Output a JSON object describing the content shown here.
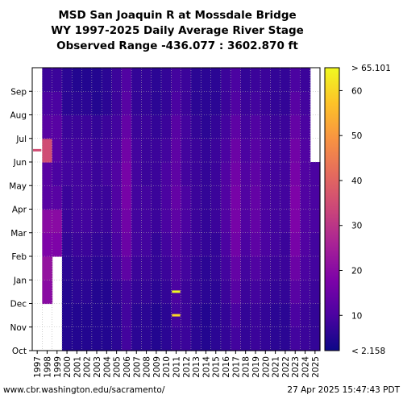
{
  "title_lines": [
    "MSD San Joaquin R at Mossdale Bridge",
    "WY 1997-2025 Daily Average River Stage",
    "Observed Range -436.077 : 3602.870 ft"
  ],
  "footer": {
    "left": "www.cbr.washington.edu/sacramento/",
    "right": "27 Apr 2025 15:47:43 PDT"
  },
  "colors": {
    "scale": [
      "#0d0887",
      "#4b03a1",
      "#7d03a8",
      "#a82296",
      "#cb4679",
      "#e56b5d",
      "#f89441",
      "#fdc328",
      "#f0f921"
    ],
    "background": "#ffffff",
    "grid": "#b0b0b0"
  },
  "chart_data": {
    "type": "heatmap",
    "x_categories": [
      "1997",
      "1998",
      "1999",
      "2000",
      "2001",
      "2002",
      "2003",
      "2004",
      "2005",
      "2006",
      "2007",
      "2008",
      "2009",
      "2010",
      "2011",
      "2012",
      "2013",
      "2014",
      "2015",
      "2016",
      "2017",
      "2018",
      "2019",
      "2020",
      "2021",
      "2022",
      "2023",
      "2024",
      "2025"
    ],
    "y_categories": [
      "Oct",
      "Nov",
      "Dec",
      "Jan",
      "Feb",
      "Mar",
      "Apr",
      "May",
      "Jun",
      "Jul",
      "Aug",
      "Sep"
    ],
    "y_order": "Oct at bottom, Sep at top",
    "colorbar": {
      "range": [
        2.158,
        65.101
      ],
      "ticks": [
        10,
        20,
        30,
        40,
        50,
        60
      ],
      "tick_labels": [
        "10",
        "20",
        "30",
        "40",
        "50",
        "60"
      ],
      "max_label": "> 65.101",
      "min_label": "< 2.158",
      "colormap": "plasma"
    },
    "approx_monthly_stage": [
      [
        null,
        null,
        null,
        null,
        null,
        null,
        null,
        null,
        null,
        null,
        null,
        null
      ],
      [
        null,
        null,
        20,
        22,
        18,
        20,
        12,
        12,
        35,
        12,
        10,
        8
      ],
      [
        null,
        null,
        null,
        null,
        18,
        20,
        12,
        10,
        12,
        12,
        10,
        8
      ],
      [
        5,
        5,
        5,
        6,
        7,
        8,
        8,
        9,
        9,
        8,
        6,
        6
      ],
      [
        5,
        5,
        6,
        7,
        8,
        9,
        9,
        9,
        9,
        8,
        6,
        5
      ],
      [
        5,
        5,
        6,
        7,
        8,
        9,
        9,
        9,
        9,
        8,
        6,
        5
      ],
      [
        5,
        5,
        5,
        6,
        7,
        8,
        8,
        8,
        8,
        7,
        5,
        5
      ],
      [
        5,
        5,
        5,
        6,
        7,
        8,
        8,
        9,
        9,
        8,
        6,
        6
      ],
      [
        6,
        6,
        7,
        9,
        10,
        11,
        11,
        11,
        10,
        9,
        8,
        8
      ],
      [
        9,
        9,
        9,
        13,
        15,
        16,
        17,
        17,
        16,
        14,
        12,
        11
      ],
      [
        6,
        6,
        7,
        8,
        9,
        9,
        9,
        9,
        9,
        8,
        7,
        7
      ],
      [
        6,
        6,
        7,
        8,
        9,
        9,
        9,
        8,
        8,
        8,
        7,
        7
      ],
      [
        5,
        5,
        6,
        7,
        7,
        8,
        8,
        8,
        8,
        7,
        6,
        6
      ],
      [
        6,
        6,
        7,
        8,
        9,
        10,
        10,
        10,
        9,
        8,
        7,
        7
      ],
      [
        8,
        9,
        10,
        11,
        12,
        13,
        14,
        13,
        13,
        12,
        10,
        9
      ],
      [
        8,
        8,
        8,
        9,
        9,
        10,
        10,
        9,
        9,
        9,
        8,
        8
      ],
      [
        6,
        6,
        7,
        7,
        8,
        8,
        8,
        8,
        8,
        7,
        6,
        6
      ],
      [
        5,
        5,
        6,
        6,
        7,
        7,
        7,
        7,
        7,
        6,
        6,
        6
      ],
      [
        6,
        6,
        6,
        7,
        7,
        8,
        8,
        8,
        8,
        7,
        6,
        6
      ],
      [
        7,
        7,
        8,
        9,
        10,
        11,
        11,
        11,
        10,
        9,
        8,
        8
      ],
      [
        9,
        10,
        12,
        14,
        16,
        17,
        17,
        16,
        15,
        13,
        11,
        10
      ],
      [
        7,
        7,
        8,
        9,
        10,
        11,
        11,
        11,
        10,
        9,
        8,
        7
      ],
      [
        8,
        8,
        9,
        11,
        13,
        14,
        14,
        13,
        12,
        11,
        9,
        8
      ],
      [
        7,
        7,
        8,
        9,
        10,
        10,
        10,
        10,
        10,
        9,
        8,
        8
      ],
      [
        6,
        6,
        7,
        8,
        9,
        9,
        9,
        9,
        9,
        8,
        7,
        7
      ],
      [
        6,
        6,
        7,
        8,
        8,
        9,
        9,
        9,
        9,
        8,
        7,
        7
      ],
      [
        9,
        10,
        12,
        15,
        17,
        18,
        18,
        17,
        16,
        14,
        12,
        10
      ],
      [
        8,
        8,
        9,
        10,
        11,
        11,
        11,
        11,
        11,
        10,
        9,
        8
      ],
      [
        7,
        7,
        8,
        9,
        9,
        10,
        10,
        10,
        null,
        null,
        null,
        null
      ]
    ],
    "bright_spots": [
      {
        "year": "2011",
        "month": "Dec",
        "value": 65
      },
      {
        "year": "2011",
        "month": "Nov",
        "value": 60
      },
      {
        "year": "1997",
        "month": "Jun",
        "value": 35
      }
    ]
  }
}
